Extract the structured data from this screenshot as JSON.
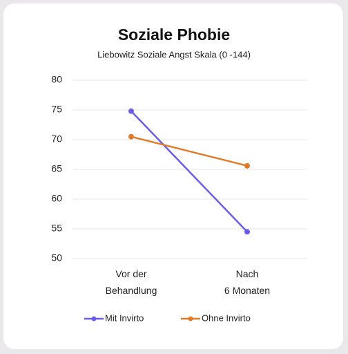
{
  "chart_data": {
    "type": "line",
    "title": "Soziale Phobie",
    "subtitle": "Liebowitz Soziale Angst Skala (0 -144)",
    "categories": [
      "Vor der\nBehandlung",
      "Nach\n6 Monaten"
    ],
    "series": [
      {
        "name": "Mit Invirto",
        "color": "#6b5ce7",
        "values": [
          74.8,
          54.5
        ]
      },
      {
        "name": "Ohne Invirto",
        "color": "#e07b2a",
        "values": [
          70.5,
          65.6
        ]
      }
    ],
    "ylim": [
      50,
      80
    ],
    "yticks": [
      50,
      55,
      60,
      65,
      70,
      75,
      80
    ],
    "grid": true,
    "legend": "bottom"
  }
}
